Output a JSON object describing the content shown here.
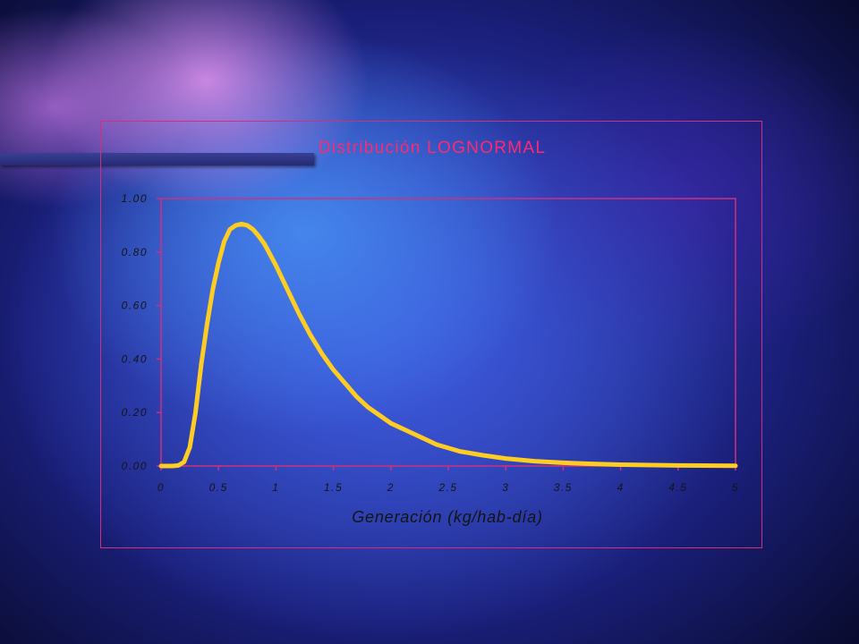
{
  "chart_data": {
    "type": "line",
    "title": "Distribución LOGNORMAL",
    "xlabel": "Generación (kg/hab-día)",
    "ylabel": "",
    "xlim": [
      0,
      5
    ],
    "ylim": [
      0,
      1
    ],
    "x_ticks": [
      "0",
      "0.5",
      "1",
      "1.5",
      "2",
      "2.5",
      "3",
      "3.5",
      "4",
      "4.5",
      "5"
    ],
    "y_ticks": [
      "0.00",
      "0.20",
      "0.40",
      "0.60",
      "0.80",
      "1.00"
    ],
    "grid": false,
    "legend": "none",
    "colors": {
      "line": "#ffcc22",
      "axes": "#d0307a",
      "title": "#ff2a6e"
    },
    "series": [
      {
        "x": [
          0,
          0.1,
          0.15,
          0.2,
          0.25,
          0.3,
          0.35,
          0.4,
          0.45,
          0.5,
          0.55,
          0.6,
          0.65,
          0.7,
          0.75,
          0.8,
          0.85,
          0.9,
          0.95,
          1.0,
          1.1,
          1.2,
          1.3,
          1.4,
          1.5,
          1.6,
          1.7,
          1.8,
          1.9,
          2.0,
          2.2,
          2.4,
          2.6,
          2.8,
          3.0,
          3.25,
          3.5,
          3.75,
          4.0,
          4.5,
          5.0
        ],
        "values": [
          0,
          0,
          0.002,
          0.015,
          0.07,
          0.2,
          0.38,
          0.53,
          0.66,
          0.76,
          0.84,
          0.885,
          0.9,
          0.905,
          0.9,
          0.885,
          0.86,
          0.83,
          0.79,
          0.75,
          0.66,
          0.57,
          0.49,
          0.42,
          0.36,
          0.31,
          0.26,
          0.22,
          0.19,
          0.16,
          0.12,
          0.08,
          0.055,
          0.04,
          0.028,
          0.018,
          0.012,
          0.008,
          0.005,
          0.002,
          0.001
        ]
      }
    ]
  }
}
